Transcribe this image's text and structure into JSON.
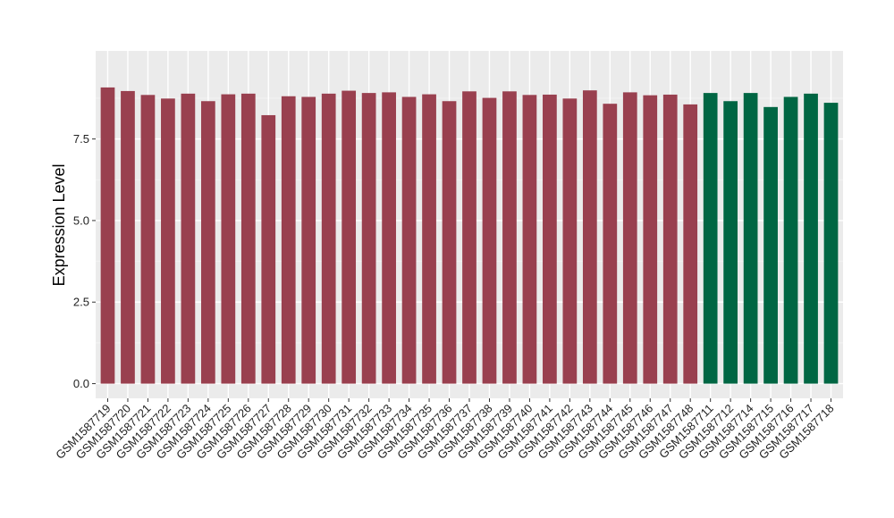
{
  "chart_data": {
    "type": "bar",
    "ylabel": "Expression Level",
    "xlabel": "",
    "ylim": [
      -0.45,
      10.2
    ],
    "yticks": [
      0.0,
      2.5,
      5.0,
      7.5
    ],
    "ytick_labels": [
      "0.0",
      "2.5",
      "5.0",
      "7.5"
    ],
    "grid": true,
    "panel_color": "#ebebeb",
    "categories": [
      "GSM1587719",
      "GSM1587720",
      "GSM1587721",
      "GSM1587722",
      "GSM1587723",
      "GSM1587724",
      "GSM1587725",
      "GSM1587726",
      "GSM1587727",
      "GSM1587728",
      "GSM1587729",
      "GSM1587730",
      "GSM1587731",
      "GSM1587732",
      "GSM1587733",
      "GSM1587734",
      "GSM1587735",
      "GSM1587736",
      "GSM1587737",
      "GSM1587738",
      "GSM1587739",
      "GSM1587740",
      "GSM1587741",
      "GSM1587742",
      "GSM1587743",
      "GSM1587744",
      "GSM1587745",
      "GSM1587746",
      "GSM1587747",
      "GSM1587748",
      "GSM1587711",
      "GSM1587712",
      "GSM1587714",
      "GSM1587715",
      "GSM1587716",
      "GSM1587717",
      "GSM1587718"
    ],
    "values": [
      9.08,
      8.97,
      8.85,
      8.74,
      8.89,
      8.66,
      8.87,
      8.89,
      8.23,
      8.81,
      8.79,
      8.89,
      8.98,
      8.91,
      8.93,
      8.79,
      8.87,
      8.66,
      8.96,
      8.76,
      8.96,
      8.85,
      8.86,
      8.74,
      8.99,
      8.58,
      8.93,
      8.84,
      8.86,
      8.56,
      8.91,
      8.66,
      8.91,
      8.48,
      8.79,
      8.89,
      8.61
    ],
    "groups": [
      "a",
      "a",
      "a",
      "a",
      "a",
      "a",
      "a",
      "a",
      "a",
      "a",
      "a",
      "a",
      "a",
      "a",
      "a",
      "a",
      "a",
      "a",
      "a",
      "a",
      "a",
      "a",
      "a",
      "a",
      "a",
      "a",
      "a",
      "a",
      "a",
      "a",
      "b",
      "b",
      "b",
      "b",
      "b",
      "b",
      "b"
    ],
    "group_colors": {
      "a": "#99404f",
      "b": "#006643"
    }
  }
}
